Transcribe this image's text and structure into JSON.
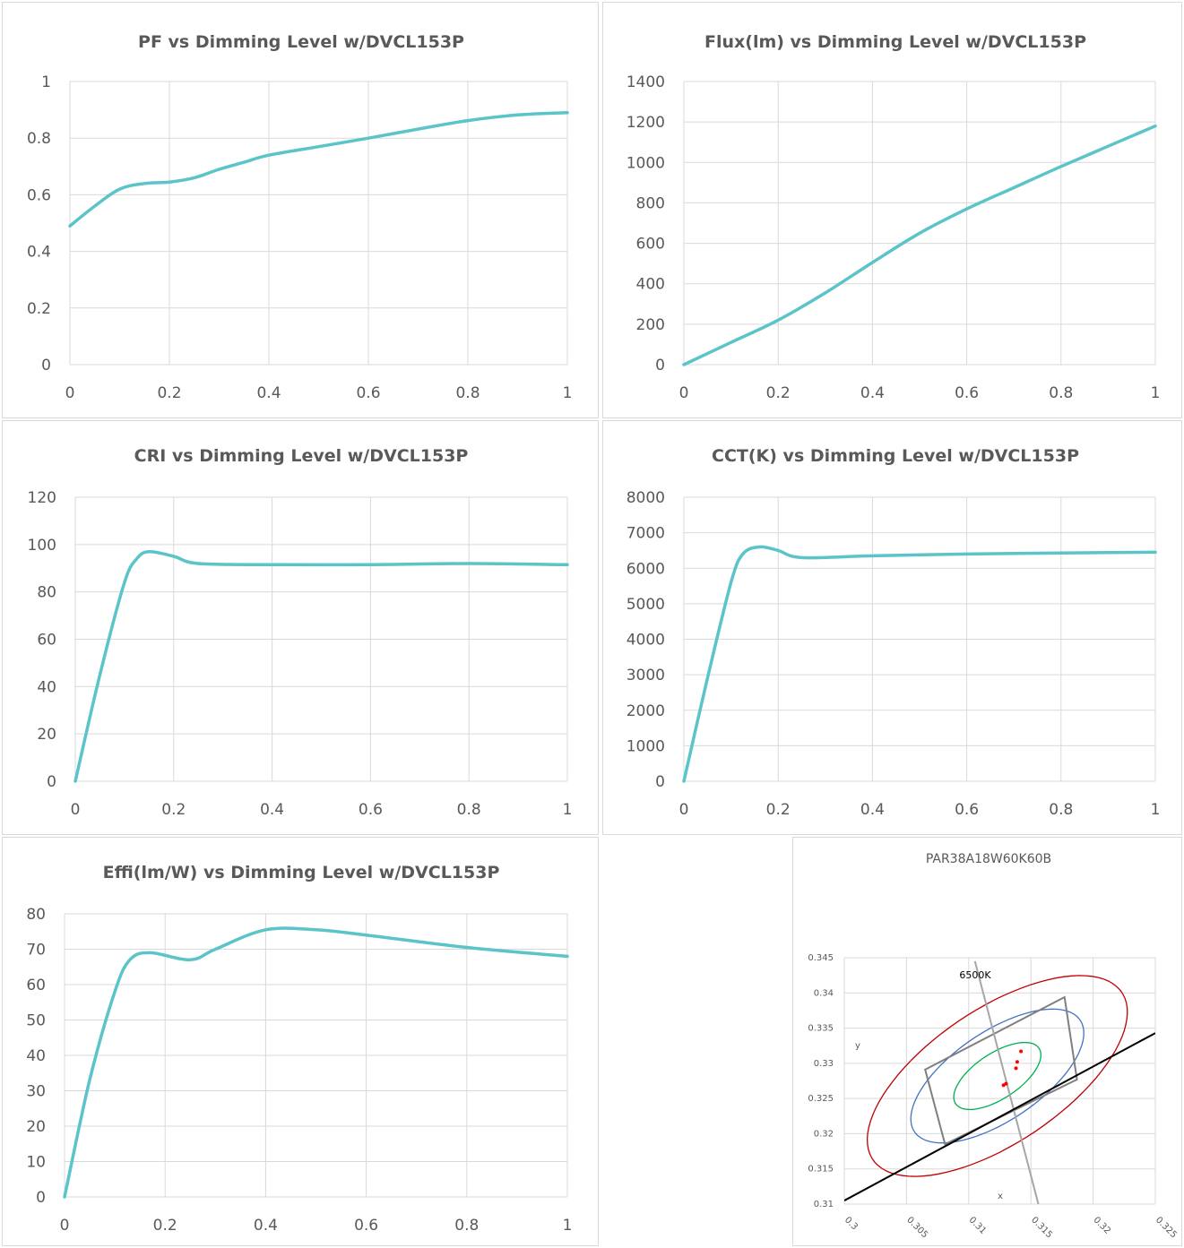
{
  "colors": {
    "curve": "#5bc4c8",
    "grid": "#d9d9d9",
    "text": "#595959",
    "ellipse_outer": "#c00000",
    "ellipse_mid": "#4472c4",
    "ellipse_inner": "#00b050",
    "quad": "#7f7f7f",
    "line": "#000000",
    "points": "#ff0000"
  },
  "chart_data": [
    {
      "id": "pf",
      "type": "line",
      "title": "PF vs Dimming Level w/DVCL153P",
      "xlim": [
        0,
        1
      ],
      "ylim": [
        0,
        1
      ],
      "xticks": [
        0,
        0.2,
        0.4,
        0.6,
        0.8,
        1
      ],
      "xtick_labels": [
        "0",
        "0.2",
        "0.4",
        "0.6",
        "0.8",
        "1"
      ],
      "yticks": [
        0,
        0.2,
        0.4,
        0.6,
        0.8,
        1
      ],
      "ytick_labels": [
        "0",
        "0.2",
        "0.4",
        "0.6",
        "0.8",
        "1"
      ],
      "grid": true,
      "x": [
        0,
        0.05,
        0.1,
        0.15,
        0.2,
        0.25,
        0.3,
        0.35,
        0.4,
        0.5,
        0.6,
        0.7,
        0.8,
        0.9,
        1
      ],
      "y": [
        0.49,
        0.56,
        0.62,
        0.64,
        0.645,
        0.66,
        0.69,
        0.715,
        0.74,
        0.77,
        0.8,
        0.832,
        0.862,
        0.882,
        0.89
      ]
    },
    {
      "id": "flux",
      "type": "line",
      "title": "Flux(lm) vs Dimming Level w/DVCL153P",
      "xlim": [
        0,
        1
      ],
      "ylim": [
        0,
        1400
      ],
      "xticks": [
        0,
        0.2,
        0.4,
        0.6,
        0.8,
        1
      ],
      "xtick_labels": [
        "0",
        "0.2",
        "0.4",
        "0.6",
        "0.8",
        "1"
      ],
      "yticks": [
        0,
        200,
        400,
        600,
        800,
        1000,
        1200,
        1400
      ],
      "ytick_labels": [
        "0",
        "200",
        "400",
        "600",
        "800",
        "1000",
        "1200",
        "1400"
      ],
      "grid": true,
      "x": [
        0,
        0.1,
        0.2,
        0.3,
        0.4,
        0.5,
        0.6,
        0.7,
        0.8,
        0.9,
        1
      ],
      "y": [
        0,
        110,
        220,
        355,
        505,
        650,
        770,
        875,
        980,
        1080,
        1180
      ]
    },
    {
      "id": "cri",
      "type": "line",
      "title": "CRI vs Dimming Level w/DVCL153P",
      "xlim": [
        0,
        1
      ],
      "ylim": [
        0,
        120
      ],
      "xticks": [
        0,
        0.2,
        0.4,
        0.6,
        0.8,
        1
      ],
      "xtick_labels": [
        "0",
        "0.2",
        "0.4",
        "0.6",
        "0.8",
        "1"
      ],
      "yticks": [
        0,
        20,
        40,
        60,
        80,
        100,
        120
      ],
      "ytick_labels": [
        "0",
        "20",
        "40",
        "60",
        "80",
        "100",
        "120"
      ],
      "grid": true,
      "x": [
        0,
        0.05,
        0.1,
        0.125,
        0.15,
        0.2,
        0.25,
        0.4,
        0.6,
        0.8,
        1
      ],
      "y": [
        0,
        45,
        84,
        94,
        97,
        95,
        92,
        91.5,
        91.5,
        92,
        91.5
      ]
    },
    {
      "id": "cct",
      "type": "line",
      "title": "CCT(K) vs Dimming Level w/DVCL153P",
      "xlim": [
        0,
        1
      ],
      "ylim": [
        0,
        8000
      ],
      "xticks": [
        0,
        0.2,
        0.4,
        0.6,
        0.8,
        1
      ],
      "xtick_labels": [
        "0",
        "0.2",
        "0.4",
        "0.6",
        "0.8",
        "1"
      ],
      "yticks": [
        0,
        1000,
        2000,
        3000,
        4000,
        5000,
        6000,
        7000,
        8000
      ],
      "ytick_labels": [
        "0",
        "1000",
        "2000",
        "3000",
        "4000",
        "5000",
        "6000",
        "7000",
        "8000"
      ],
      "grid": true,
      "x": [
        0,
        0.05,
        0.1,
        0.125,
        0.16,
        0.2,
        0.25,
        0.4,
        0.6,
        0.8,
        1
      ],
      "y": [
        0,
        2900,
        5600,
        6400,
        6600,
        6500,
        6300,
        6350,
        6400,
        6430,
        6450
      ]
    },
    {
      "id": "effi",
      "type": "line",
      "title": "Effi(lm/W) vs Dimming Level w/DVCL153P",
      "xlim": [
        0,
        1
      ],
      "ylim": [
        0,
        80
      ],
      "xticks": [
        0,
        0.2,
        0.4,
        0.6,
        0.8,
        1
      ],
      "xtick_labels": [
        "0",
        "0.2",
        "0.4",
        "0.6",
        "0.8",
        "1"
      ],
      "yticks": [
        0,
        10,
        20,
        30,
        40,
        50,
        60,
        70,
        80
      ],
      "ytick_labels": [
        "0",
        "10",
        "20",
        "30",
        "40",
        "50",
        "60",
        "70",
        "80"
      ],
      "grid": true,
      "x": [
        0,
        0.05,
        0.1,
        0.13,
        0.17,
        0.25,
        0.3,
        0.4,
        0.5,
        0.6,
        0.8,
        1
      ],
      "y": [
        0,
        33,
        58,
        67,
        69,
        67,
        70,
        75.5,
        75.5,
        74,
        70.5,
        68
      ]
    },
    {
      "id": "chromaticity",
      "type": "scatter",
      "title": "PAR38A18W60K60B",
      "xlabel": "x",
      "ylabel": "y",
      "xlim": [
        0.3,
        0.325
      ],
      "ylim": [
        0.31,
        0.345
      ],
      "xticks": [
        0.3,
        0.305,
        0.31,
        0.315,
        0.32,
        0.325
      ],
      "xtick_labels": [
        "0.3",
        "0.305",
        "0.31",
        "0.315",
        "0.32",
        "0.325"
      ],
      "yticks": [
        0.31,
        0.315,
        0.32,
        0.325,
        0.33,
        0.335,
        0.34,
        0.345
      ],
      "ytick_labels": [
        "0.31",
        "0.315",
        "0.32",
        "0.325",
        "0.33",
        "0.335",
        "0.34",
        "0.345"
      ],
      "grid": true,
      "annotation": "6500K",
      "points": [
        [
          0.3128,
          0.3269
        ],
        [
          0.313,
          0.3271
        ],
        [
          0.3138,
          0.3293
        ],
        [
          0.3139,
          0.3302
        ],
        [
          0.3142,
          0.3317
        ]
      ],
      "ellipses": [
        {
          "cx": 0.3123,
          "cy": 0.3282,
          "rx": 0.0054,
          "ry": 0.0024,
          "angle_deg": 58.2,
          "color": "ellipse_inner"
        },
        {
          "cx": 0.3123,
          "cy": 0.3282,
          "rx": 0.0108,
          "ry": 0.0047,
          "angle_deg": 58.2,
          "color": "ellipse_mid"
        },
        {
          "cx": 0.3123,
          "cy": 0.3282,
          "rx": 0.0162,
          "ry": 0.0071,
          "angle_deg": 58.2,
          "color": "ellipse_outer"
        }
      ],
      "quadrangle": [
        [
          0.3065,
          0.3291
        ],
        [
          0.3177,
          0.3394
        ],
        [
          0.3187,
          0.3277
        ],
        [
          0.3081,
          0.3185
        ]
      ],
      "isotemp_line": [
        [
          0.3105,
          0.3445
        ],
        [
          0.3156,
          0.31
        ]
      ],
      "locus_line": [
        [
          0.3,
          0.3105
        ],
        [
          0.325,
          0.3343
        ]
      ]
    }
  ]
}
